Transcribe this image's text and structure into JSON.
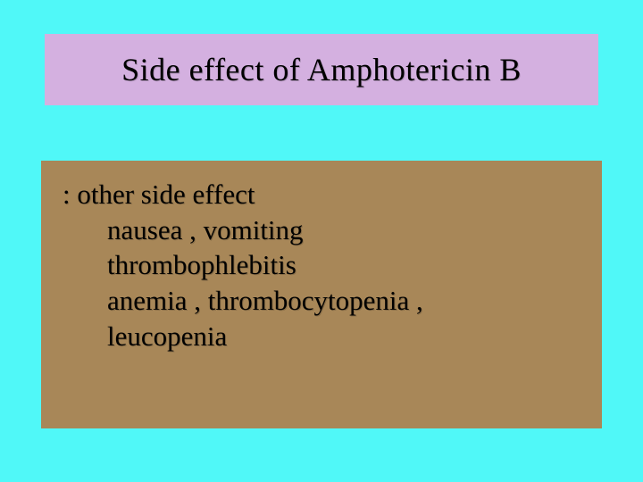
{
  "slide": {
    "background_color": "#50f8f8",
    "title": {
      "text": "Side  effect of Amphotericin  B",
      "background_color": "#d4b0e0",
      "text_color": "#000000",
      "font_size": 36
    },
    "content": {
      "background_color": "#a88758",
      "text_color": "#000000",
      "font_size": 31,
      "lines": [
        ":  other side  effect",
        "nausea  ,  vomiting",
        "thrombophlebitis",
        "anemia , thrombocytopenia ,",
        "leucopenia"
      ]
    }
  }
}
